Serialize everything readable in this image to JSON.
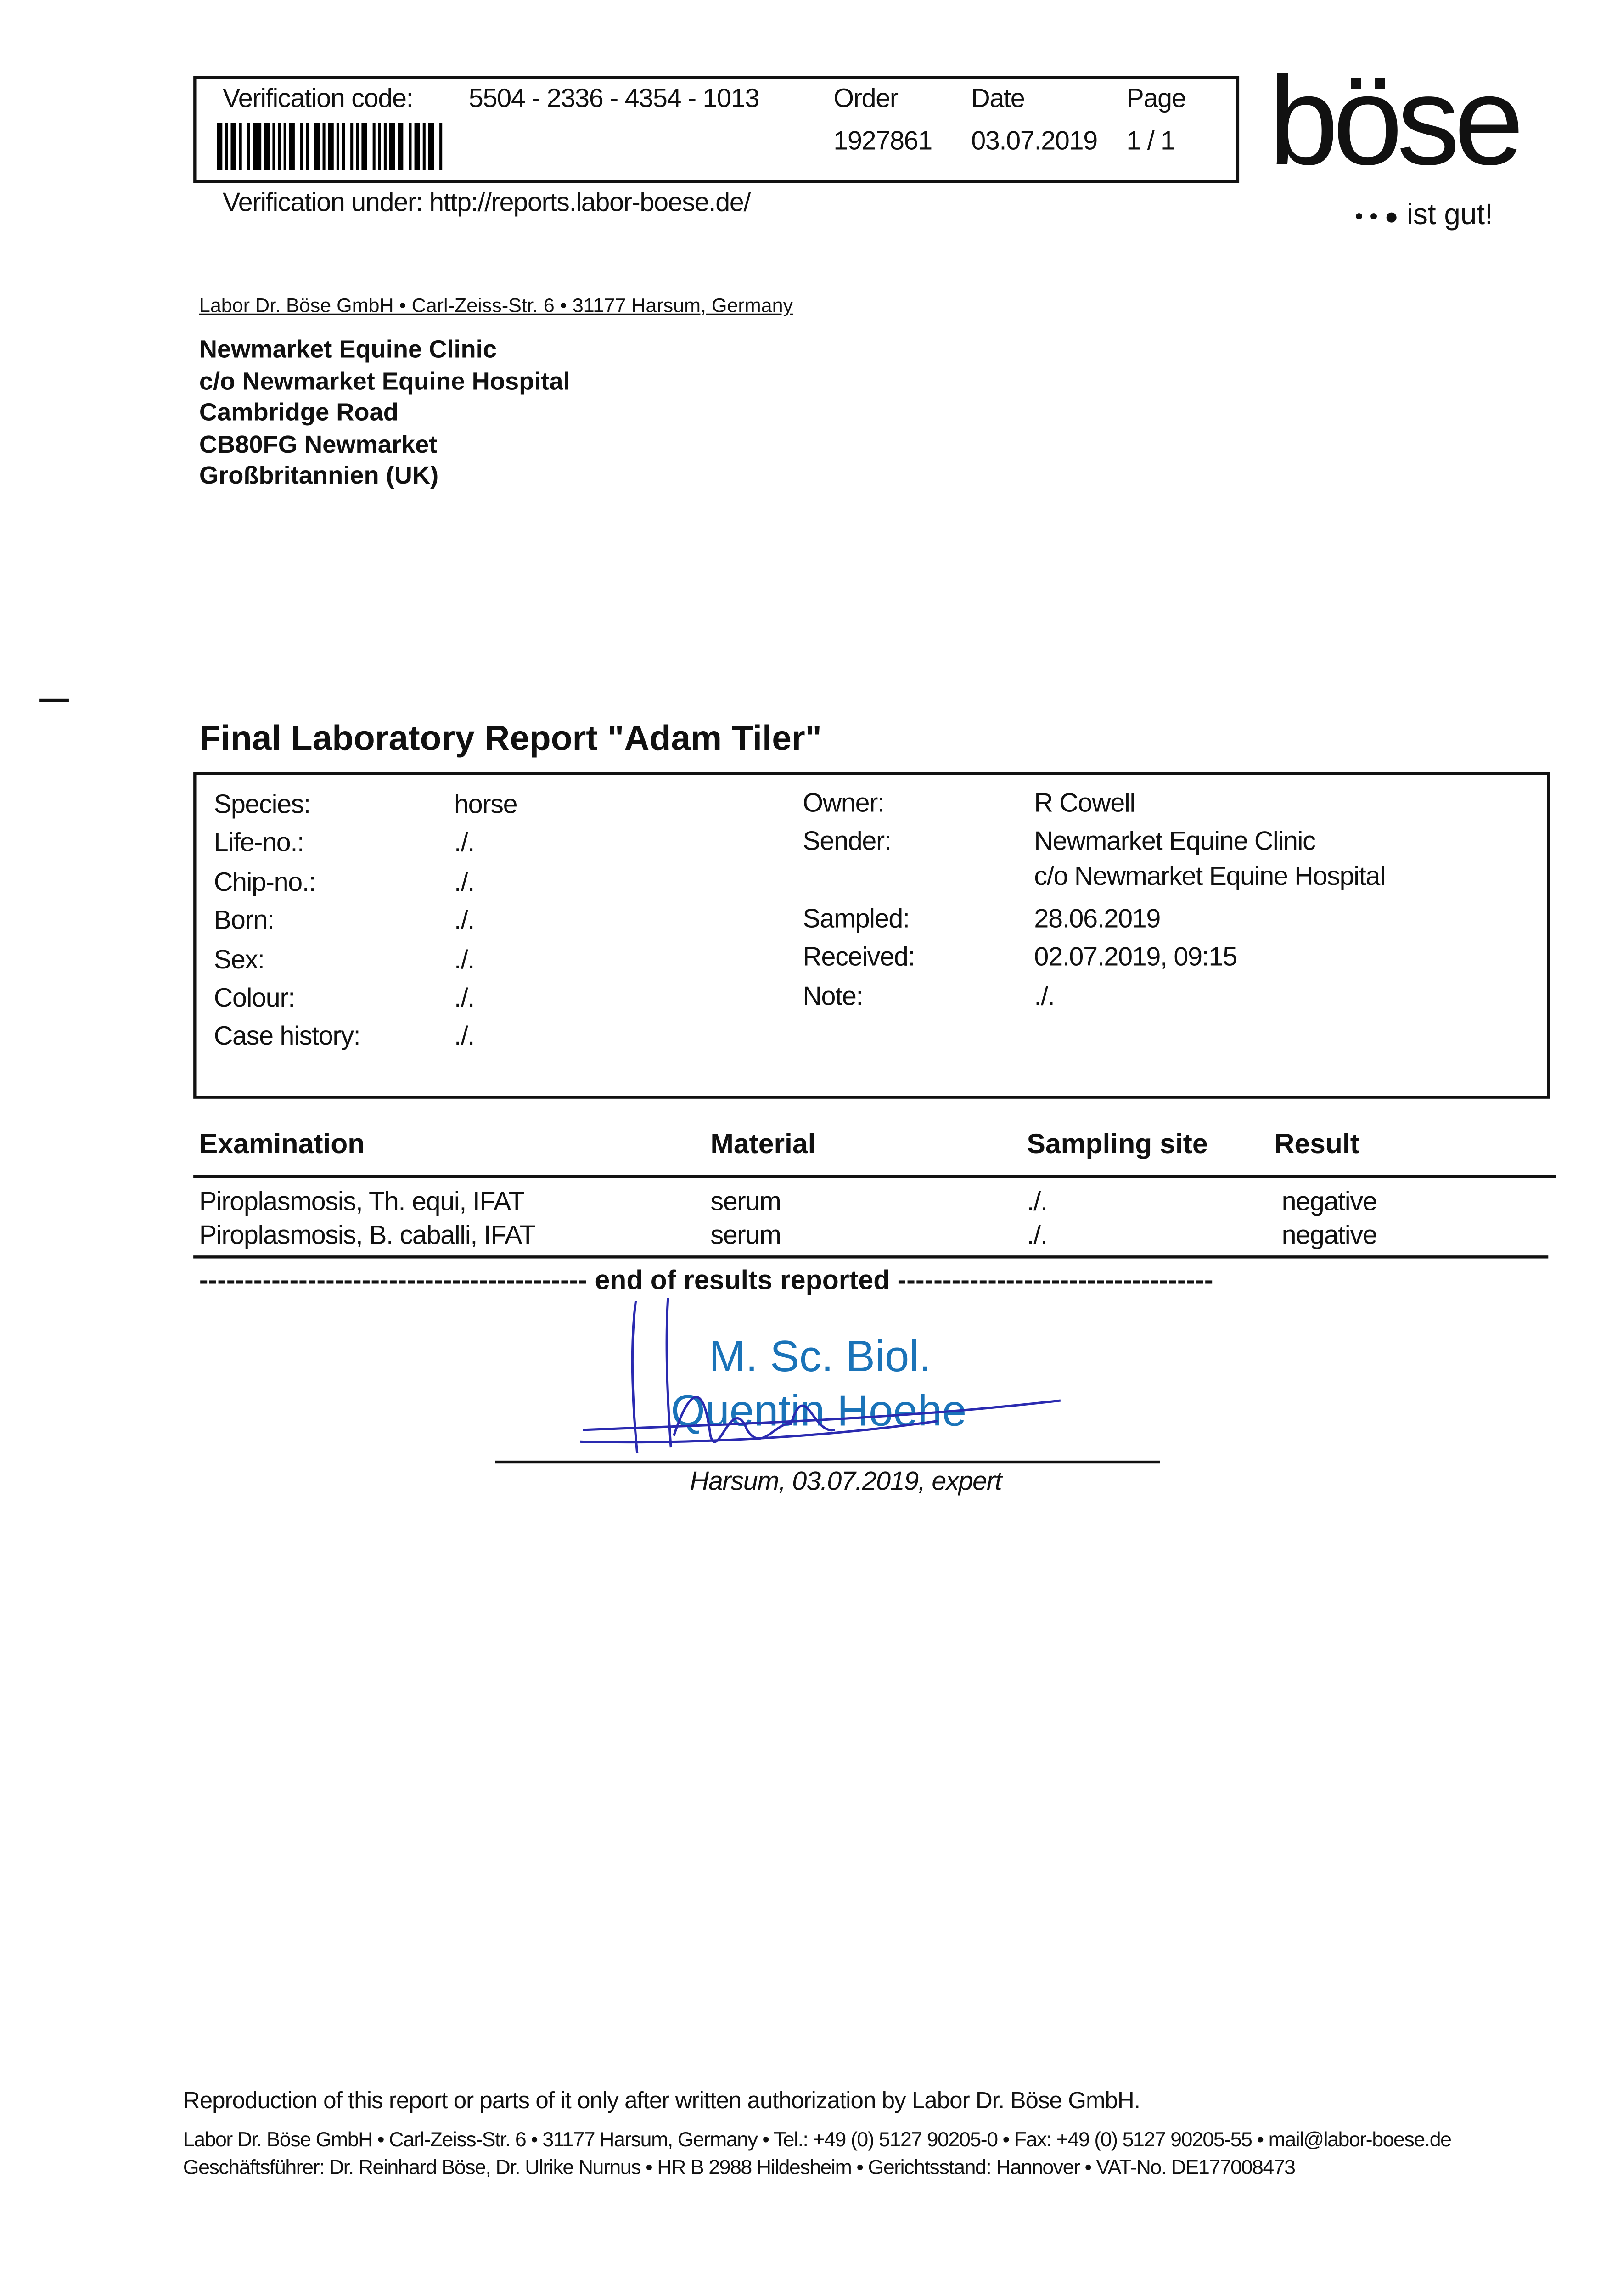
{
  "header": {
    "verification_label": "Verification code:",
    "verification_code": "5504 - 2336 - 4354 - 1013",
    "order_label": "Order",
    "order_value": "1927861",
    "date_label": "Date",
    "date_value": "03.07.2019",
    "page_label": "Page",
    "page_value": "1 / 1",
    "verification_under": "Verification under: http://reports.labor-boese.de/"
  },
  "logo": {
    "name": "böse",
    "tagline": "ist gut!"
  },
  "sender_line": "Labor Dr. Böse GmbH • Carl-Zeiss-Str. 6 • 31177 Harsum, Germany",
  "address": [
    "Newmarket Equine Clinic",
    "c/o Newmarket Equine Hospital",
    "Cambridge Road",
    "CB80FG Newmarket",
    "Großbritannien (UK)"
  ],
  "title": "Final Laboratory Report \"Adam Tiler\"",
  "info_left": [
    {
      "label": "Species:",
      "value": "horse"
    },
    {
      "label": "Life-no.:",
      "value": "./."
    },
    {
      "label": "Chip-no.:",
      "value": "./."
    },
    {
      "label": "Born:",
      "value": "./."
    },
    {
      "label": "Sex:",
      "value": "./."
    },
    {
      "label": "Colour:",
      "value": "./."
    },
    {
      "label": "Case history:",
      "value": "./."
    }
  ],
  "info_right": {
    "owner_label": "Owner:",
    "owner": "R Cowell",
    "sender_label": "Sender:",
    "sender_1": "Newmarket Equine Clinic",
    "sender_2": "c/o Newmarket Equine Hospital",
    "sampled_label": "Sampled:",
    "sampled": "28.06.2019",
    "received_label": "Received:",
    "received": "02.07.2019, 09:15",
    "note_label": "Note:",
    "note": "./."
  },
  "table": {
    "headers": [
      "Examination",
      "Material",
      "Sampling site",
      "Result"
    ],
    "rows": [
      [
        "Piroplasmosis, Th. equi, IFAT",
        "serum",
        "./.",
        "negative"
      ],
      [
        "Piroplasmosis, B. caballi, IFAT",
        "serum",
        "./.",
        "negative"
      ]
    ],
    "end_text": "------------------------------------------- end of results reported -----------------------------------"
  },
  "signature": {
    "stamp_1": "M. Sc. Biol.",
    "stamp_2": "Quentin Hoehe",
    "caption": "Harsum, 03.07.2019, expert",
    "stamp_color": "#1a73b8",
    "ink_color": "#2a2ab0"
  },
  "footer": {
    "line1": "Reproduction of this report or parts of it only after written authorization by Labor Dr. Böse GmbH.",
    "line2": "Labor Dr. Böse GmbH • Carl-Zeiss-Str. 6 • 31177 Harsum, Germany • Tel.: +49 (0) 5127 90205-0 • Fax: +49 (0) 5127 90205-55 • mail@labor-boese.de",
    "line3": "Geschäftsführer: Dr. Reinhard Böse, Dr. Ulrike Nurnus • HR B 2988 Hildesheim • Gerichtsstand: Hannover • VAT-No. DE177008473"
  }
}
